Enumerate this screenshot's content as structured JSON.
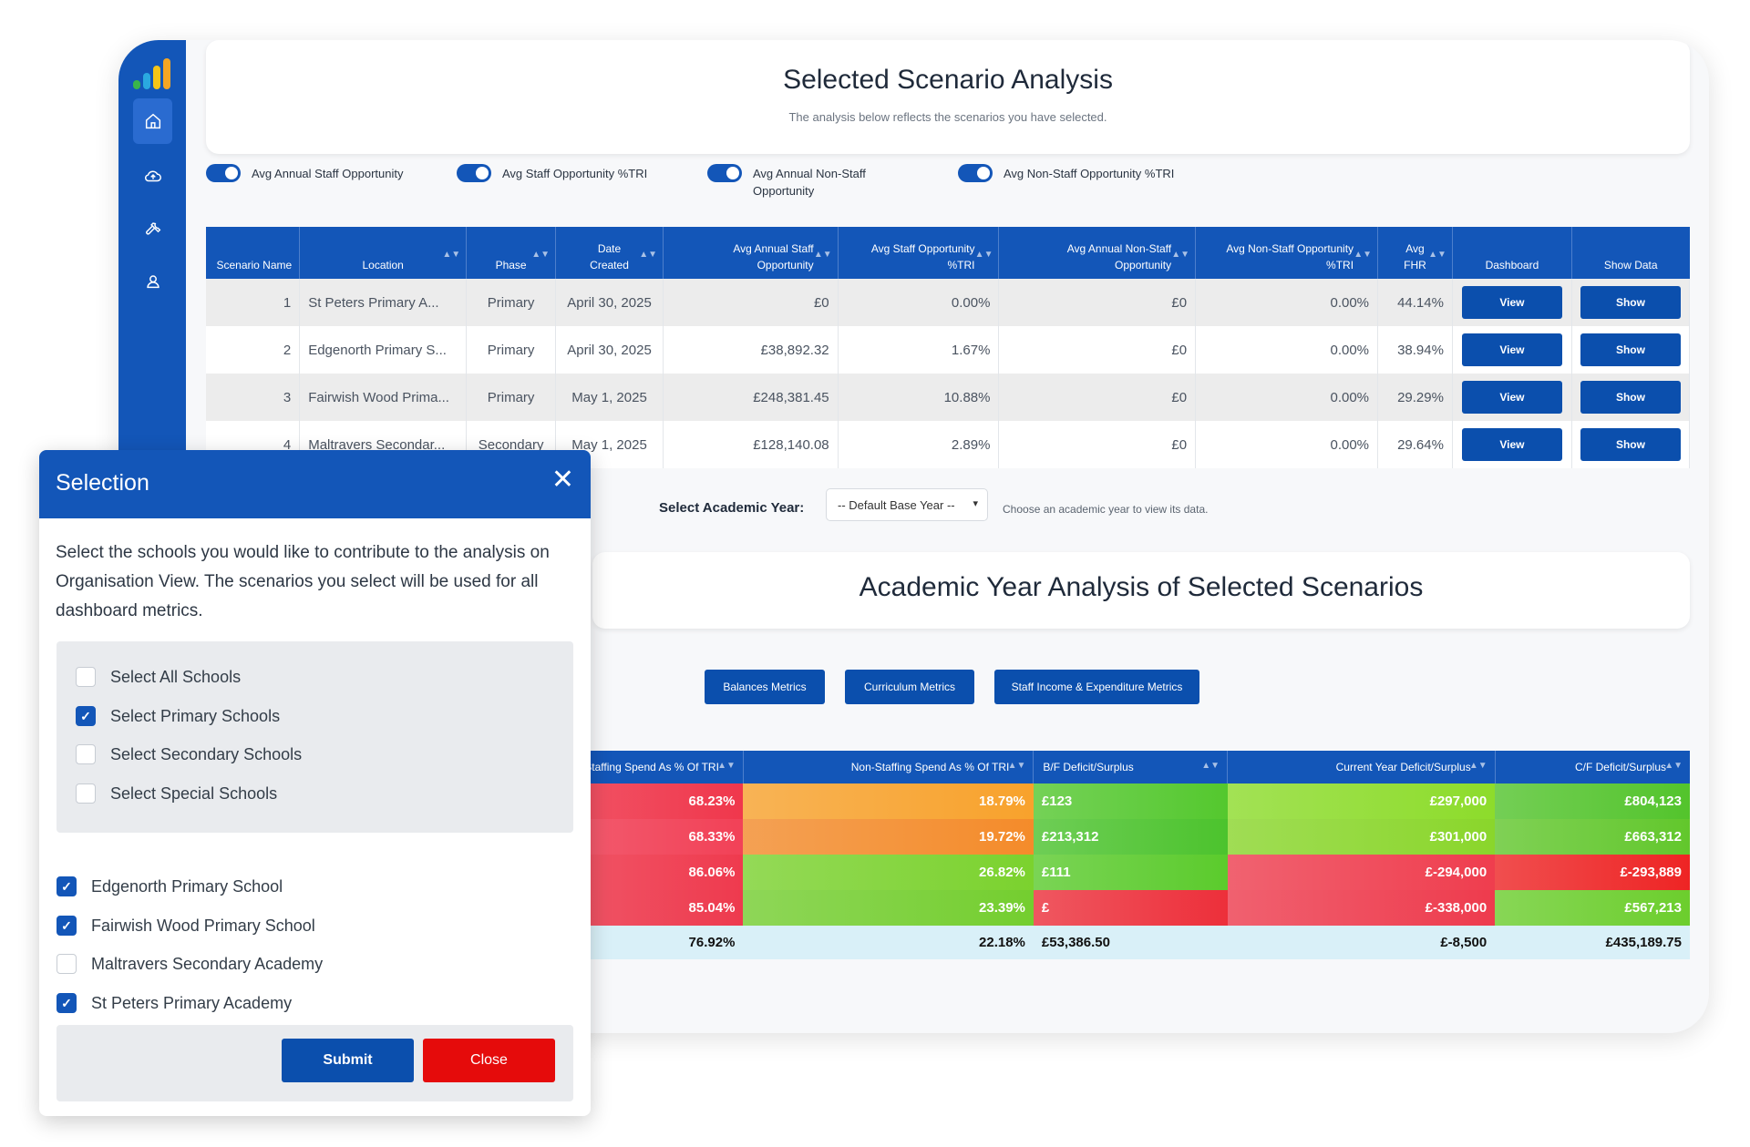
{
  "page": {
    "title": "Selected Scenario Analysis",
    "subtitle": "The analysis below reflects the scenarios you have selected."
  },
  "sidebar": {
    "items": [
      {
        "name": "home-icon",
        "active": true
      },
      {
        "name": "cloud-upload-icon",
        "active": false
      },
      {
        "name": "wrench-icon",
        "active": false
      },
      {
        "name": "user-icon",
        "active": false
      }
    ]
  },
  "toggles": [
    {
      "label": "Avg Annual Staff Opportunity",
      "on": true
    },
    {
      "label": "Avg Staff Opportunity %TRI",
      "on": true
    },
    {
      "label": "Avg Annual Non-Staff Opportunity",
      "on": true
    },
    {
      "label": "Avg Non-Staff Opportunity %TRI",
      "on": true
    }
  ],
  "scenario_table": {
    "columns": [
      "Scenario Name",
      "Location",
      "Phase",
      "Date Created",
      "Avg Annual Staff Opportunity",
      "Avg Staff Opportunity %TRI",
      "Avg Annual Non-Staff Opportunity",
      "Avg Non-Staff Opportunity %TRI",
      "Avg FHR",
      "Dashboard",
      "Show Data"
    ],
    "view_label": "View",
    "show_label": "Show",
    "rows": [
      {
        "id": "1",
        "location": "St Peters Primary A...",
        "phase": "Primary",
        "date": "April 30, 2025",
        "staff": "£0",
        "staff_pct": "0.00%",
        "nonstaff": "£0",
        "nonstaff_pct": "0.00%",
        "fhr": "44.14%"
      },
      {
        "id": "2",
        "location": "Edgenorth Primary S...",
        "phase": "Primary",
        "date": "April 30, 2025",
        "staff": "£38,892.32",
        "staff_pct": "1.67%",
        "nonstaff": "£0",
        "nonstaff_pct": "0.00%",
        "fhr": "38.94%"
      },
      {
        "id": "3",
        "location": "Fairwish Wood Prima...",
        "phase": "Primary",
        "date": "May 1, 2025",
        "staff": "£248,381.45",
        "staff_pct": "10.88%",
        "nonstaff": "£0",
        "nonstaff_pct": "0.00%",
        "fhr": "29.29%"
      },
      {
        "id": "4",
        "location": "Maltravers Secondar...",
        "phase": "Secondary",
        "date": "May 1, 2025",
        "staff": "£128,140.08",
        "staff_pct": "2.89%",
        "nonstaff": "£0",
        "nonstaff_pct": "0.00%",
        "fhr": "29.64%"
      }
    ]
  },
  "academic_year": {
    "label": "Select Academic Year:",
    "selected": "-- Default Base Year --",
    "hint": "Choose an academic year to view its data."
  },
  "year_analysis": {
    "title": "Academic Year Analysis of Selected Scenarios"
  },
  "metric_buttons": [
    "Balances Metrics",
    "Curriculum Metrics",
    "Staff Income & Expenditure Metrics"
  ],
  "metrics_table": {
    "columns": [
      "Staffing Spend As % Of TRI",
      "Non-Staffing Spend As % Of TRI",
      "B/F Deficit/Surplus",
      "Current Year Deficit/Surplus",
      "C/F Deficit/Surplus"
    ],
    "rows": [
      [
        "68.23%",
        "18.79%",
        "£123",
        "£297,000",
        "£804,123"
      ],
      [
        "68.33%",
        "19.72%",
        "£213,312",
        "£301,000",
        "£663,312"
      ],
      [
        "86.06%",
        "26.82%",
        "£111",
        "£-294,000",
        "£-293,889"
      ],
      [
        "85.04%",
        "23.39%",
        "£",
        "£-338,000",
        "£567,213"
      ]
    ],
    "colors": [
      [
        "#f0374c",
        "#f8a22c",
        "#54c82e",
        "#8ddc2b",
        "#53c42c"
      ],
      [
        "#f24157",
        "#f48b2a",
        "#4cc32d",
        "#8ad62b",
        "#62c72c"
      ],
      [
        "#ef3a4e",
        "#7bd22e",
        "#5bcb2c",
        "#ef3d4e",
        "#ee2424"
      ],
      [
        "#ee3a4e",
        "#74ce2f",
        "#ed2f3a",
        "#ee3b4d",
        "#6cce2d"
      ]
    ],
    "totals": [
      "76.92%",
      "22.18%",
      "£53,386.50",
      "£-8,500",
      "£435,189.75"
    ]
  },
  "modal": {
    "title": "Selection",
    "description": "Select the schools you would like to contribute to the analysis on Organisation View. The scenarios you select will be used for all dashboard metrics.",
    "group_options": [
      {
        "label": "Select All Schools",
        "checked": false
      },
      {
        "label": "Select Primary Schools",
        "checked": true
      },
      {
        "label": "Select Secondary Schools",
        "checked": false
      },
      {
        "label": "Select Special Schools",
        "checked": false
      }
    ],
    "schools": [
      {
        "label": "Edgenorth Primary School",
        "checked": true
      },
      {
        "label": "Fairwish Wood Primary School",
        "checked": true
      },
      {
        "label": "Maltravers Secondary Academy",
        "checked": false
      },
      {
        "label": "St Peters Primary Academy",
        "checked": true
      }
    ],
    "submit_label": "Submit",
    "close_label": "Close",
    "colors": {
      "submit": "#0b4fad",
      "close": "#e50b0b"
    }
  }
}
